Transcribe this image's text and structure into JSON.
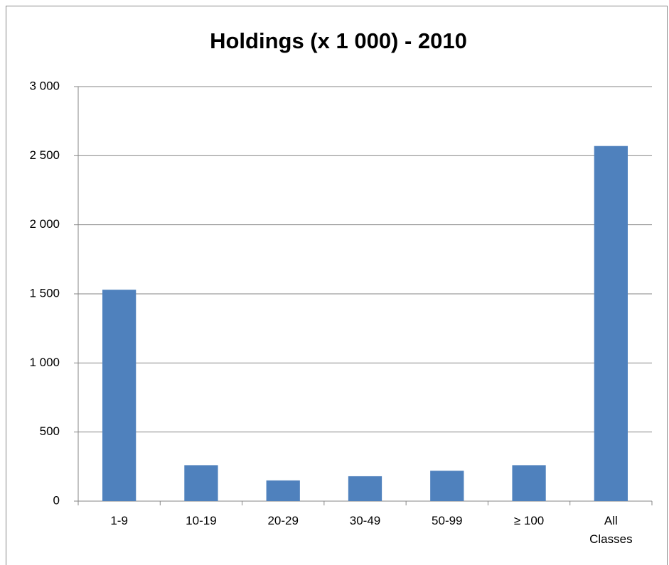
{
  "chart_data": {
    "type": "bar",
    "title": "Holdings (x 1 000) - 2010",
    "categories": [
      "1-9",
      "10-19",
      "20-29",
      "30-49",
      "50-99",
      "≥ 100",
      "All Classes"
    ],
    "values": [
      1530,
      260,
      150,
      180,
      220,
      260,
      2570
    ],
    "color": "#4f81bd",
    "ylim": [
      0,
      3000
    ],
    "yticks": [
      0,
      500,
      {
        "value": 1000,
        "label": "1 000"
      },
      {
        "value": 1500,
        "label": "1 500"
      },
      {
        "value": 2000,
        "label": "2 000"
      },
      {
        "value": 2500,
        "label": "2 500"
      },
      {
        "value": 3000,
        "label": "3 000"
      }
    ],
    "grid": true
  }
}
